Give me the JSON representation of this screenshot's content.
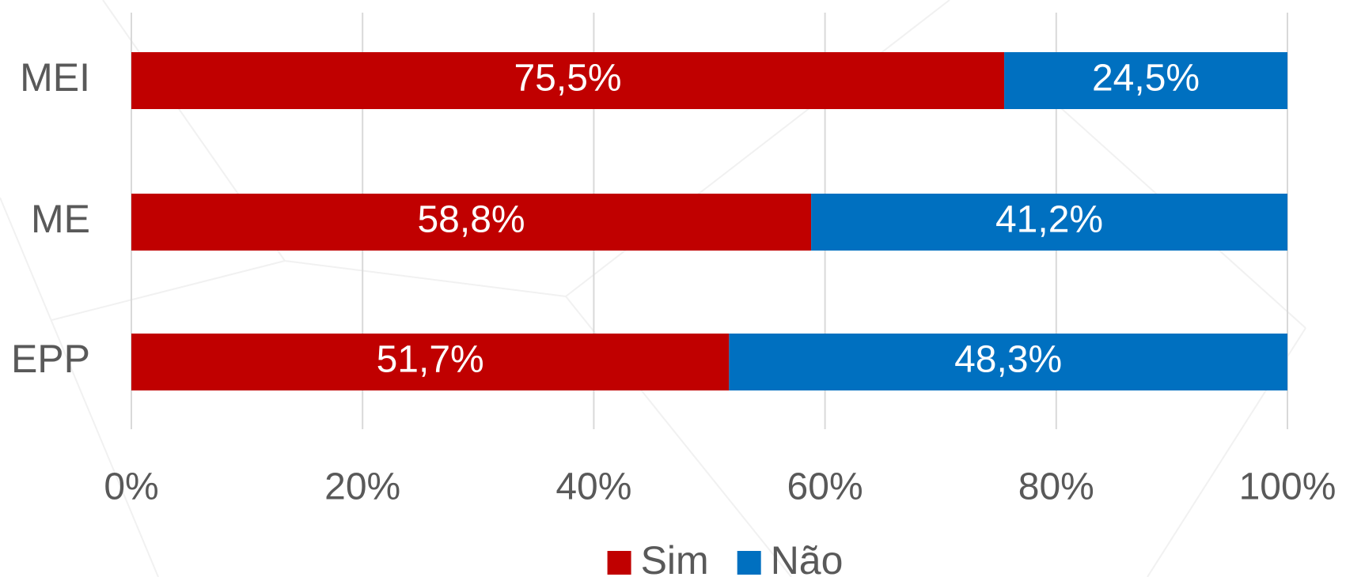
{
  "chart_data": {
    "type": "stacked-bar-horizontal",
    "categories": [
      "MEI",
      "ME",
      "EPP"
    ],
    "series": [
      {
        "name": "Sim",
        "color": "#c00000",
        "values": [
          75.5,
          58.8,
          51.7
        ],
        "value_labels": [
          "75,5%",
          "58,8%",
          "51,7%"
        ]
      },
      {
        "name": "Não",
        "color": "#0070c0",
        "values": [
          24.5,
          41.2,
          48.3
        ],
        "value_labels": [
          "24,5%",
          "41,2%",
          "48,3%"
        ]
      }
    ],
    "xlim": [
      0,
      100
    ],
    "xticks": [
      {
        "value": 0,
        "label": "0%"
      },
      {
        "value": 20,
        "label": "20%"
      },
      {
        "value": 40,
        "label": "40%"
      },
      {
        "value": 60,
        "label": "60%"
      },
      {
        "value": 80,
        "label": "80%"
      },
      {
        "value": 100,
        "label": "100%"
      }
    ],
    "grid": true,
    "legend": "bottom"
  }
}
